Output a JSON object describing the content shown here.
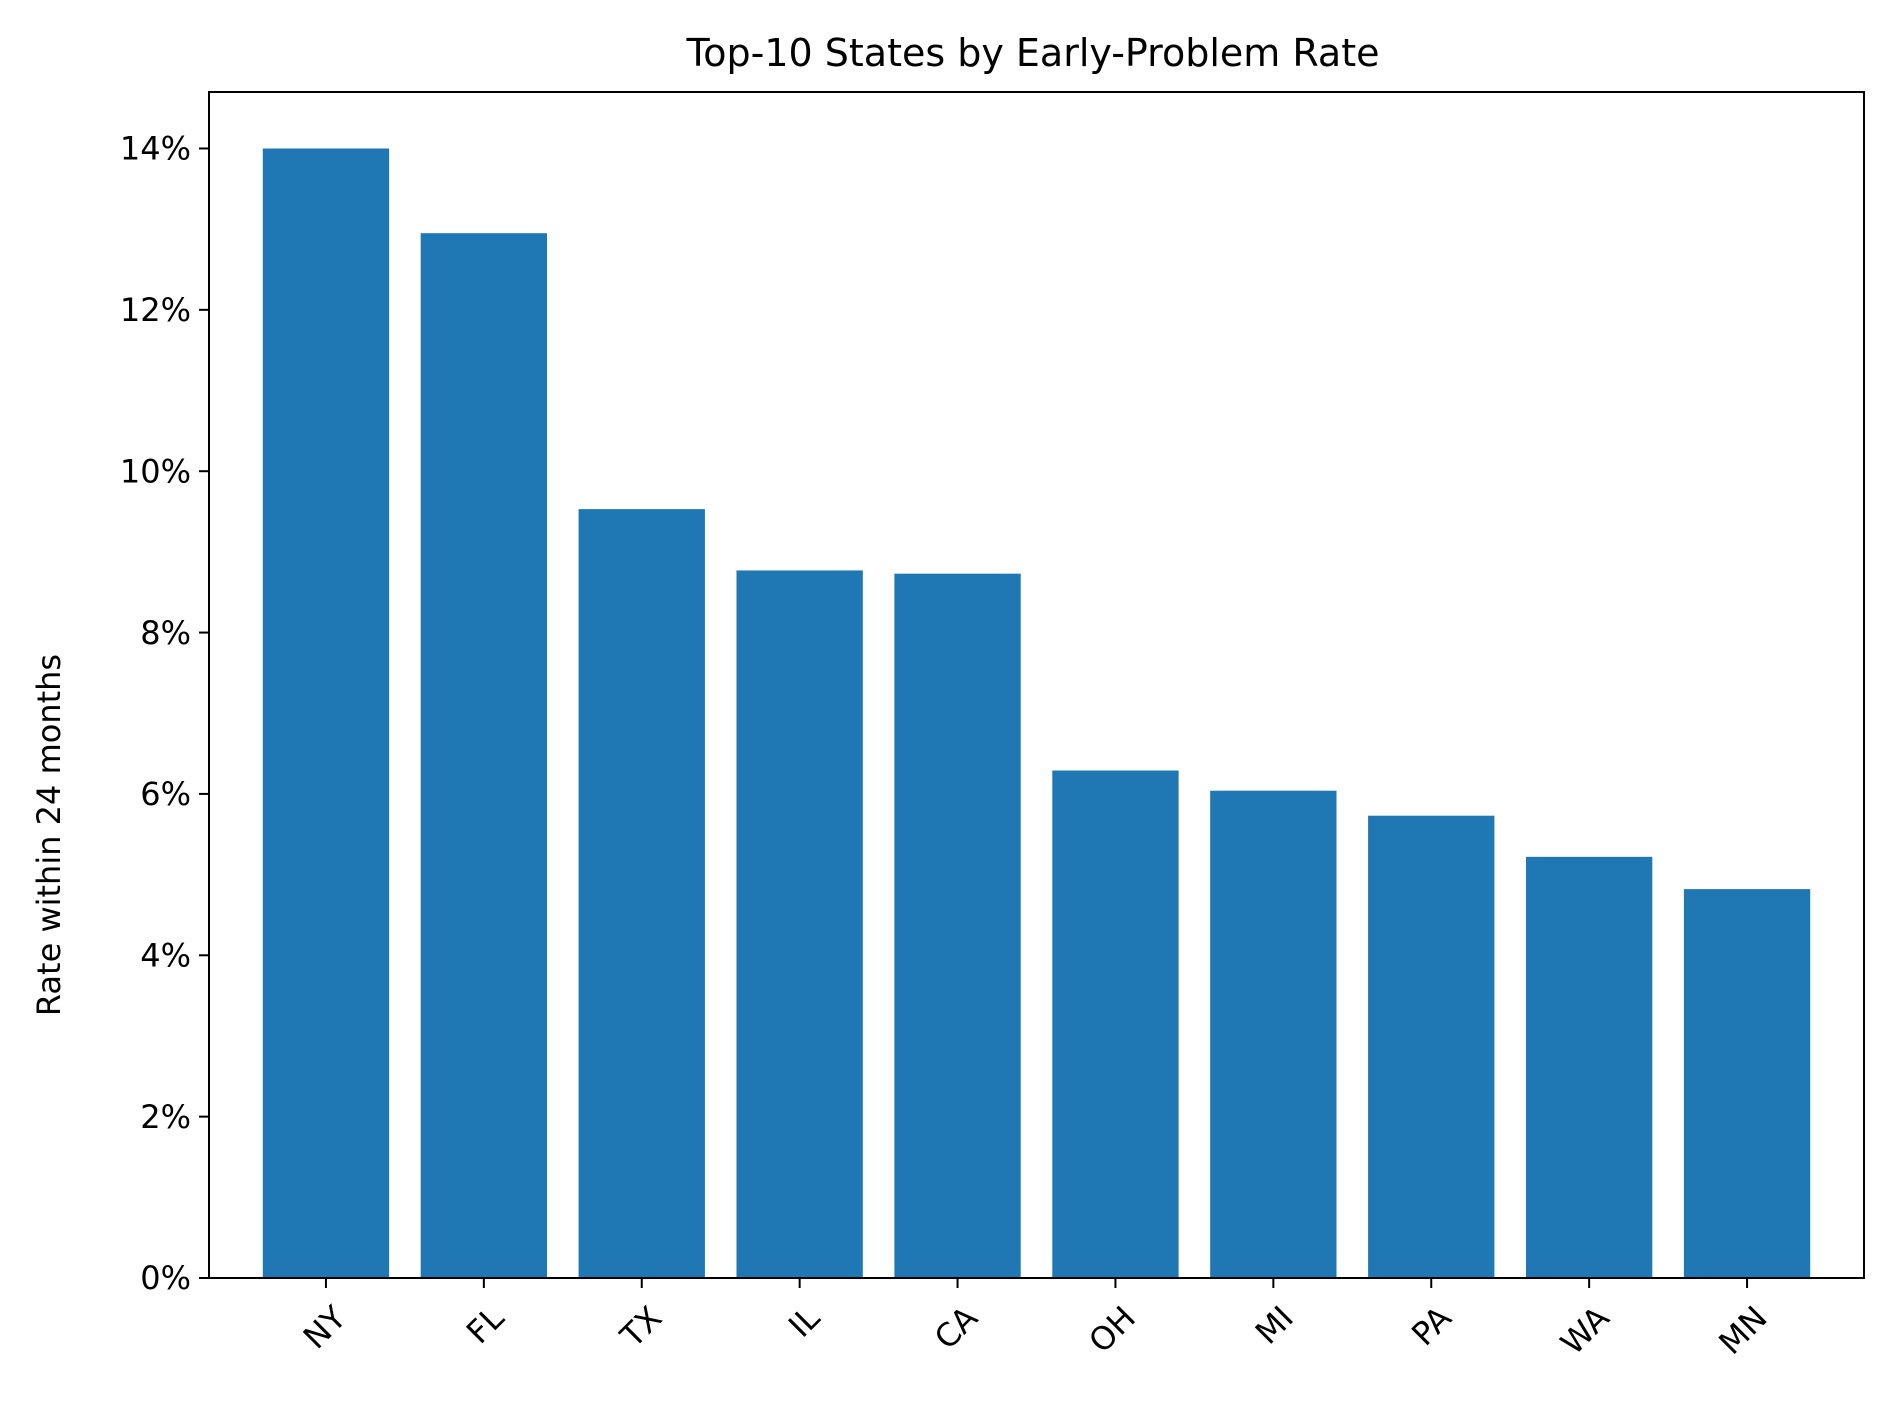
{
  "chart_data": {
    "type": "bar",
    "title": "Top-10 States by Early-Problem Rate",
    "xlabel": "",
    "ylabel": "Rate within 24 months",
    "categories": [
      "NY",
      "FL",
      "TX",
      "IL",
      "CA",
      "OH",
      "MI",
      "PA",
      "WA",
      "MN"
    ],
    "values": [
      14.0,
      12.95,
      9.53,
      8.77,
      8.73,
      6.29,
      6.04,
      5.73,
      5.22,
      4.82
    ],
    "value_format": "percent",
    "ylim": [
      0,
      14.7
    ],
    "yticks": [
      0,
      2,
      4,
      6,
      8,
      10,
      12,
      14
    ],
    "ytick_labels": [
      "0%",
      "2%",
      "4%",
      "6%",
      "8%",
      "10%",
      "12%",
      "14%"
    ],
    "grid": false,
    "bar_color": "#1f77b4"
  }
}
